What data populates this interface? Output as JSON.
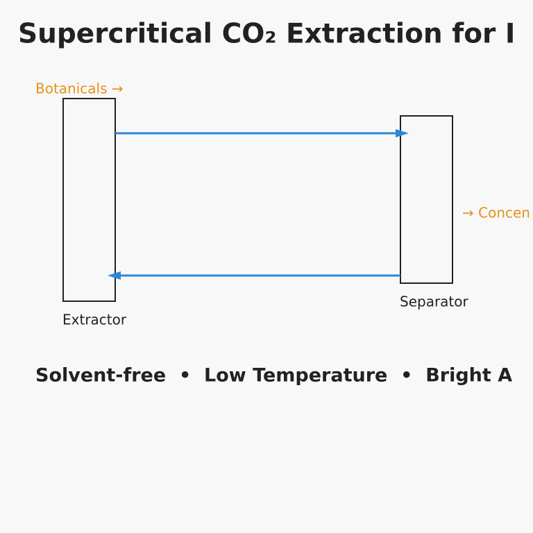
{
  "header": {
    "title": "Supercritical CO₂ Extraction for I"
  },
  "nodes": [
    {
      "label": "Extractor"
    },
    {
      "label": "Separator"
    }
  ],
  "input": {
    "label": "Botanicals →"
  },
  "output": {
    "label": "→ Concen"
  },
  "footer": {
    "text": "Solvent-free  •  Low Temperature  •  Bright A"
  }
}
